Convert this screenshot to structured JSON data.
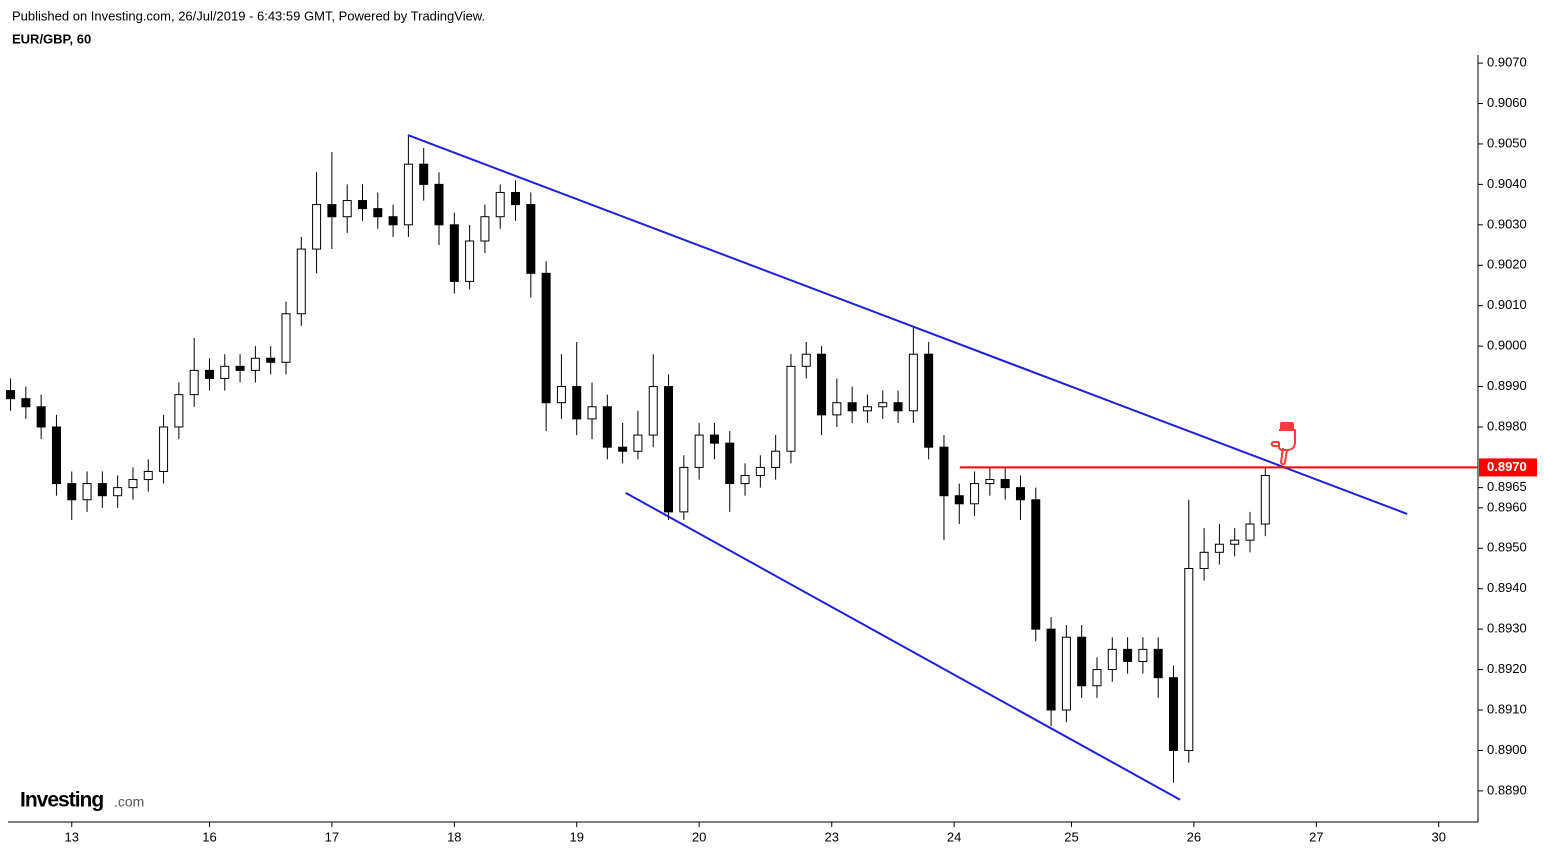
{
  "chart_data": {
    "type": "candlestick",
    "subtitle": "Published on Investing.com, 26/Jul/2019 - 6:43:59 GMT, Powered by TradingView.",
    "title": "EUR/GBP, 60",
    "x": [
      -12,
      -9,
      -6,
      -3,
      0,
      3,
      6,
      9,
      12,
      15,
      18,
      21,
      24,
      27,
      30,
      33,
      36,
      39,
      42,
      45,
      48,
      51,
      54,
      57,
      60,
      63,
      66,
      69,
      72,
      75,
      78,
      81,
      84,
      87,
      90,
      93,
      96,
      99,
      102,
      105,
      108,
      111,
      114,
      117,
      120,
      123,
      126,
      129,
      132,
      135,
      138,
      141,
      144,
      147,
      150,
      153,
      156,
      159,
      162,
      165,
      168,
      171,
      174,
      177,
      180,
      183,
      186,
      189,
      192,
      195,
      198,
      201,
      204,
      207,
      210,
      213,
      216,
      219,
      222,
      225,
      228,
      231,
      234
    ],
    "open": [
      0.8989,
      0.8987,
      0.8985,
      0.898,
      0.8966,
      0.8962,
      0.8966,
      0.8963,
      0.8965,
      0.8967,
      0.8969,
      0.898,
      0.8988,
      0.8994,
      0.8992,
      0.8995,
      0.8994,
      0.8997,
      0.8996,
      0.9008,
      0.9024,
      0.9035,
      0.9032,
      0.9036,
      0.9034,
      0.9032,
      0.903,
      0.9045,
      0.904,
      0.903,
      0.9016,
      0.9026,
      0.9032,
      0.9038,
      0.9035,
      0.9018,
      0.8986,
      0.899,
      0.8982,
      0.8985,
      0.8975,
      0.8974,
      0.8978,
      0.899,
      0.8959,
      0.897,
      0.8978,
      0.8976,
      0.8966,
      0.8968,
      0.897,
      0.8974,
      0.8995,
      0.8998,
      0.8983,
      0.8986,
      0.8984,
      0.8985,
      0.8986,
      0.8984,
      0.8998,
      0.8975,
      0.8963,
      0.8961,
      0.8966,
      0.8967,
      0.8965,
      0.8962,
      0.893,
      0.891,
      0.8928,
      0.8916,
      0.892,
      0.8925,
      0.8922,
      0.8925,
      0.8918,
      0.89,
      0.8945,
      0.8949,
      0.8951,
      0.8952,
      0.8956
    ],
    "high": [
      0.8992,
      0.899,
      0.8988,
      0.8983,
      0.8969,
      0.8969,
      0.8969,
      0.8968,
      0.897,
      0.8972,
      0.8983,
      0.8991,
      0.9002,
      0.8997,
      0.8998,
      0.8998,
      0.9,
      0.9,
      0.9011,
      0.9027,
      0.9043,
      0.9048,
      0.904,
      0.904,
      0.9038,
      0.9035,
      0.9052,
      0.9049,
      0.9043,
      0.9033,
      0.903,
      0.9035,
      0.904,
      0.9041,
      0.9038,
      0.9021,
      0.8998,
      0.9001,
      0.8991,
      0.8988,
      0.8981,
      0.8984,
      0.8998,
      0.8993,
      0.8973,
      0.8981,
      0.8981,
      0.8979,
      0.8971,
      0.8973,
      0.8978,
      0.8998,
      0.9001,
      0.9,
      0.8992,
      0.899,
      0.8988,
      0.8989,
      0.8989,
      0.9005,
      0.9001,
      0.8978,
      0.8966,
      0.8969,
      0.897,
      0.897,
      0.8968,
      0.8965,
      0.8933,
      0.8931,
      0.8931,
      0.8923,
      0.8928,
      0.8928,
      0.8928,
      0.8928,
      0.8921,
      0.8962,
      0.8955,
      0.8956,
      0.8955,
      0.8959,
      0.897
    ],
    "low": [
      0.8984,
      0.8982,
      0.8977,
      0.8963,
      0.8957,
      0.8959,
      0.896,
      0.896,
      0.8962,
      0.8964,
      0.8966,
      0.8977,
      0.8985,
      0.8989,
      0.8989,
      0.8991,
      0.8991,
      0.8993,
      0.8993,
      0.9005,
      0.9018,
      0.9024,
      0.9028,
      0.9031,
      0.9029,
      0.9027,
      0.9027,
      0.9036,
      0.9025,
      0.9013,
      0.9014,
      0.9023,
      0.9029,
      0.9031,
      0.9012,
      0.8979,
      0.8982,
      0.8978,
      0.8977,
      0.8972,
      0.8971,
      0.8972,
      0.8975,
      0.8957,
      0.8957,
      0.8967,
      0.8972,
      0.8959,
      0.8963,
      0.8965,
      0.8967,
      0.8971,
      0.8992,
      0.8978,
      0.898,
      0.8981,
      0.8981,
      0.8982,
      0.8981,
      0.8981,
      0.8972,
      0.8952,
      0.8956,
      0.8958,
      0.8963,
      0.8962,
      0.8957,
      0.8927,
      0.8906,
      0.8907,
      0.8913,
      0.8913,
      0.8917,
      0.8919,
      0.8919,
      0.8913,
      0.8892,
      0.8897,
      0.8942,
      0.8946,
      0.8948,
      0.8949,
      0.8953
    ],
    "close": [
      0.8987,
      0.8985,
      0.898,
      0.8966,
      0.8962,
      0.8966,
      0.8963,
      0.8965,
      0.8967,
      0.8969,
      0.898,
      0.8988,
      0.8994,
      0.8992,
      0.8995,
      0.8994,
      0.8997,
      0.8996,
      0.9008,
      0.9024,
      0.9035,
      0.9032,
      0.9036,
      0.9034,
      0.9032,
      0.903,
      0.9045,
      0.904,
      0.903,
      0.9016,
      0.9026,
      0.9032,
      0.9038,
      0.9035,
      0.9018,
      0.8986,
      0.899,
      0.8982,
      0.8985,
      0.8975,
      0.8974,
      0.8978,
      0.899,
      0.8959,
      0.897,
      0.8978,
      0.8976,
      0.8966,
      0.8968,
      0.897,
      0.8974,
      0.8995,
      0.8998,
      0.8983,
      0.8986,
      0.8984,
      0.8985,
      0.8986,
      0.8984,
      0.8998,
      0.8975,
      0.8963,
      0.8961,
      0.8966,
      0.8967,
      0.8965,
      0.8962,
      0.893,
      0.891,
      0.8928,
      0.8916,
      0.892,
      0.8925,
      0.8922,
      0.8925,
      0.8918,
      0.89,
      0.8945,
      0.8949,
      0.8951,
      0.8952,
      0.8956,
      0.8968
    ],
    "up_color": "#ffffff",
    "down_color": "#000000",
    "wick_color": "#000000",
    "xlim": [
      -12.5,
      275.7
    ],
    "xticks": [
      {
        "value": 0,
        "label": "13"
      },
      {
        "value": 27,
        "label": "16"
      },
      {
        "value": 51,
        "label": "17"
      },
      {
        "value": 75,
        "label": "18"
      },
      {
        "value": 99,
        "label": "19"
      },
      {
        "value": 123,
        "label": "20"
      },
      {
        "value": 149,
        "label": "23"
      },
      {
        "value": 173,
        "label": "24"
      },
      {
        "value": 196,
        "label": "25"
      },
      {
        "value": 220,
        "label": "26"
      },
      {
        "value": 244,
        "label": "27"
      },
      {
        "value": 268,
        "label": "30"
      }
    ],
    "ylim": [
      0.88823,
      0.9072
    ],
    "yticks": [
      {
        "value": 0.889,
        "label": "0.8890"
      },
      {
        "value": 0.89,
        "label": "0.8900"
      },
      {
        "value": 0.891,
        "label": "0.8910"
      },
      {
        "value": 0.892,
        "label": "0.8920"
      },
      {
        "value": 0.893,
        "label": "0.8930"
      },
      {
        "value": 0.894,
        "label": "0.8940"
      },
      {
        "value": 0.895,
        "label": "0.8950"
      },
      {
        "value": 0.896,
        "label": "0.8960"
      },
      {
        "value": 0.8965,
        "label": "0.8965"
      },
      {
        "value": 0.898,
        "label": "0.8980"
      },
      {
        "value": 0.899,
        "label": "0.8990"
      },
      {
        "value": 0.9,
        "label": "0.9000"
      },
      {
        "value": 0.901,
        "label": "0.9010"
      },
      {
        "value": 0.902,
        "label": "0.9020"
      },
      {
        "value": 0.903,
        "label": "0.9030"
      },
      {
        "value": 0.904,
        "label": "0.9040"
      },
      {
        "value": 0.905,
        "label": "0.9050"
      },
      {
        "value": 0.906,
        "label": "0.9060"
      },
      {
        "value": 0.907,
        "label": "0.9070"
      }
    ],
    "trendline_color": "#1f1fd6",
    "trendlines": [
      {
        "x": [
          65.9,
          261.8
        ],
        "y": [
          0.90522,
          0.89585
        ]
      },
      {
        "x": [
          108.6,
          217.3
        ],
        "y": [
          0.89637,
          0.88878
        ]
      }
    ],
    "price_line": {
      "x": 174.1,
      "value": 0.897,
      "label": "0.8970",
      "color": "#ff0000"
    }
  },
  "brand": {
    "name": "Investing",
    "suffix": ".com"
  }
}
